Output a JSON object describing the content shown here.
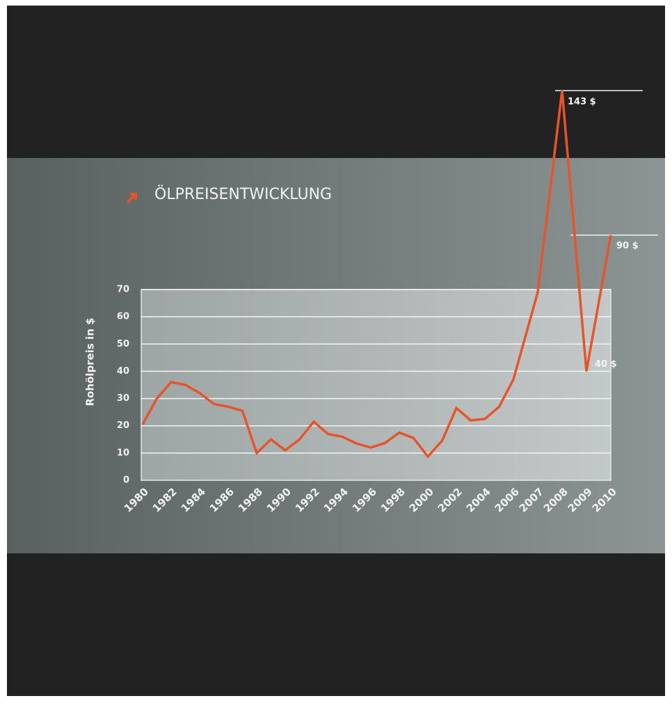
{
  "chart_data": {
    "type": "line",
    "title": "ÖLPREISENTWICKLUNG",
    "y_label": "Rohölpreis in $",
    "categories": [
      "1980",
      null,
      "1982",
      null,
      "1984",
      null,
      "1986",
      null,
      "1988",
      null,
      "1990",
      null,
      "1992",
      null,
      "1994",
      null,
      "1996",
      null,
      "1998",
      null,
      "2000",
      null,
      "2002",
      null,
      "2004",
      null,
      "2006",
      "2007",
      "2008",
      "2009",
      "2010"
    ],
    "series": [
      {
        "color": "#e8542a",
        "values": [
          20.5,
          30,
          36,
          35,
          32,
          28,
          27,
          25.5,
          10,
          15,
          11,
          15,
          21.5,
          17,
          16,
          13.5,
          12,
          13.7,
          17.5,
          15.5,
          8.7,
          14.5,
          26.5,
          22,
          22.5,
          27,
          37,
          69,
          143,
          40,
          90
        ],
        "value_labels": [
          null,
          null,
          null,
          null,
          null,
          null,
          null,
          null,
          null,
          null,
          null,
          null,
          null,
          null,
          null,
          null,
          null,
          null,
          null,
          null,
          null,
          null,
          null,
          null,
          null,
          null,
          null,
          null,
          "143 $",
          "40 $",
          "90 $"
        ]
      }
    ],
    "ylim": [
      0,
      70
    ],
    "yticks": [
      0,
      10,
      20,
      30,
      40,
      50,
      60,
      70
    ],
    "grid": true
  }
}
